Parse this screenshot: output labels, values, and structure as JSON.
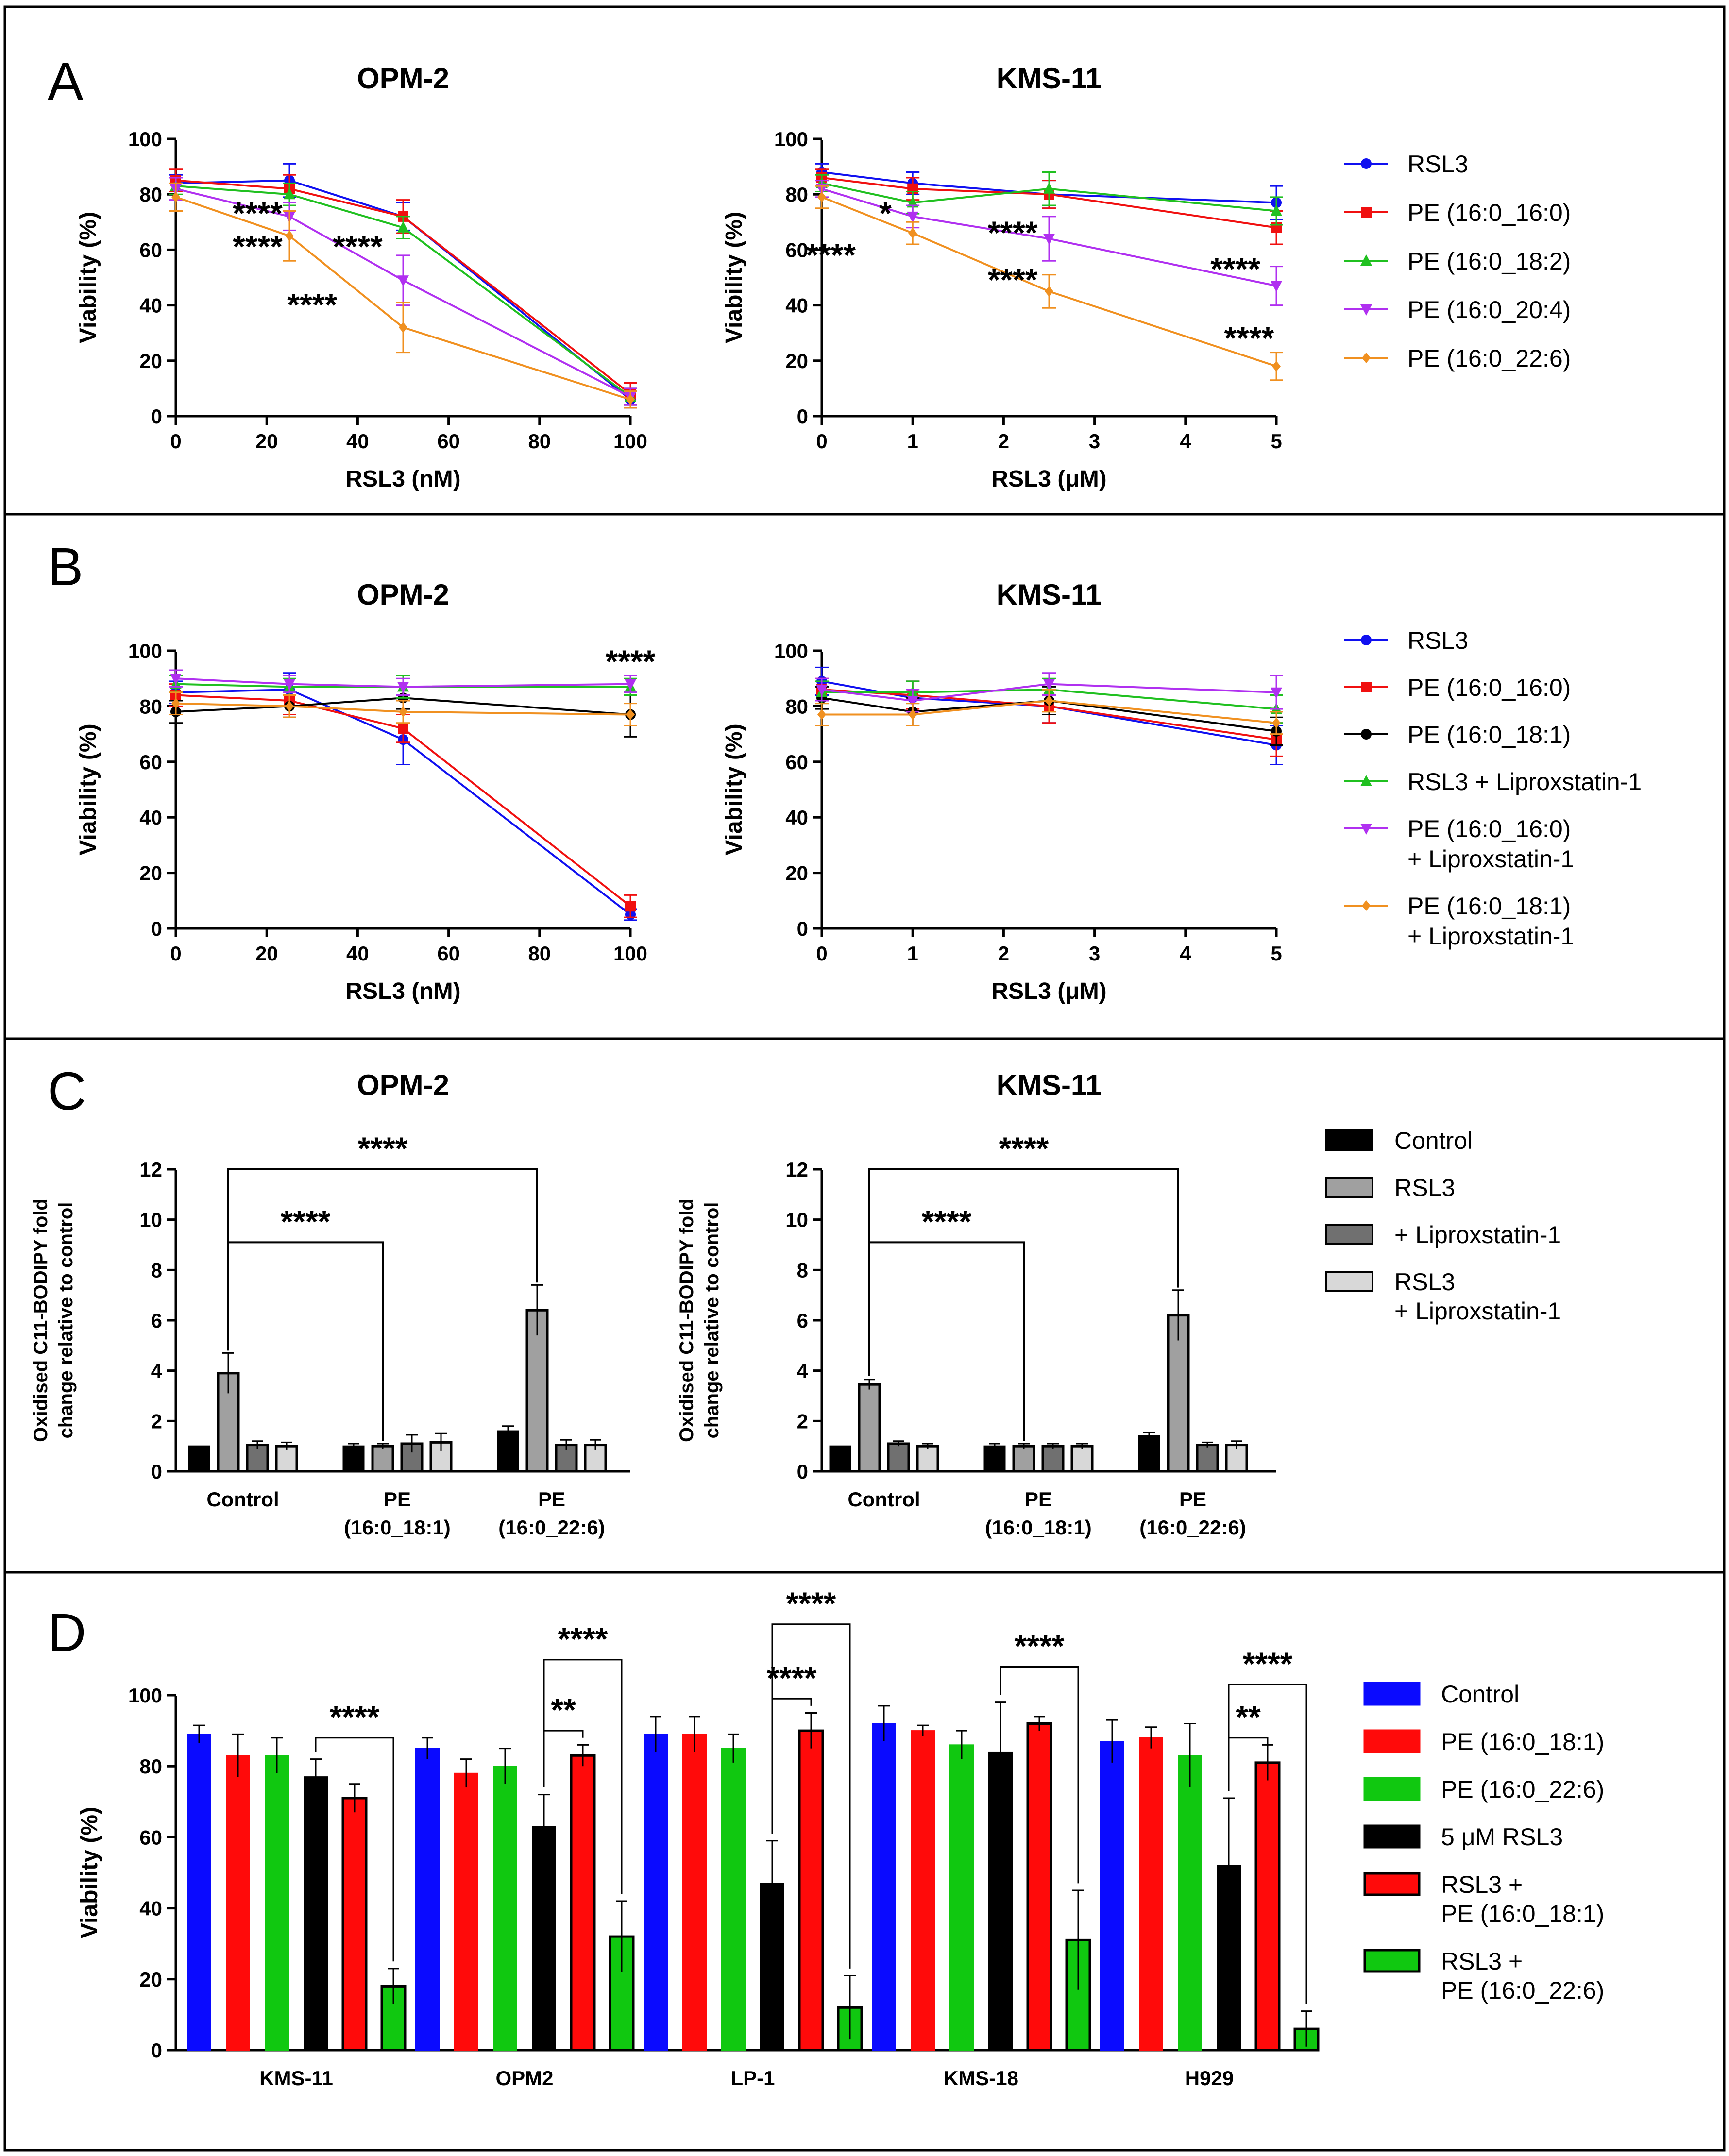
{
  "panels": [
    {
      "letter": "A"
    },
    {
      "letter": "B"
    },
    {
      "letter": "C"
    },
    {
      "letter": "D"
    }
  ],
  "legends": {
    "A": [
      {
        "label": "RSL3",
        "color": "#1010f0",
        "marker": "circle"
      },
      {
        "label": "PE (16:0_16:0)",
        "color": "#f01010",
        "marker": "square"
      },
      {
        "label": "PE (16:0_18:2)",
        "color": "#20c020",
        "marker": "triangle"
      },
      {
        "label": "PE (16:0_20:4)",
        "color": "#b030f0",
        "marker": "triangle-down"
      },
      {
        "label": "PE (16:0_22:6)",
        "color": "#f09020",
        "marker": "diamond"
      }
    ],
    "B": [
      {
        "lines": [
          "RSL3"
        ],
        "color": "#1010f0",
        "marker": "circle"
      },
      {
        "lines": [
          "PE (16:0_16:0)"
        ],
        "color": "#f01010",
        "marker": "square"
      },
      {
        "lines": [
          "PE (16:0_18:1)"
        ],
        "color": "#000000",
        "marker": "circle"
      },
      {
        "lines": [
          "RSL3 + Liproxstatin-1"
        ],
        "color": "#20c020",
        "marker": "triangle"
      },
      {
        "lines": [
          "PE (16:0_16:0)",
          "+ Liproxstatin-1"
        ],
        "color": "#b030f0",
        "marker": "triangle-down"
      },
      {
        "lines": [
          "PE (16:0_18:1)",
          "+ Liproxstatin-1"
        ],
        "color": "#f09020",
        "marker": "diamond"
      }
    ],
    "C": [
      {
        "lines": [
          "Control"
        ],
        "color": "#000000"
      },
      {
        "lines": [
          "RSL3"
        ],
        "color": "#a0a0a0"
      },
      {
        "lines": [
          "+ Liproxstatin-1"
        ],
        "color": "#707070"
      },
      {
        "lines": [
          "RSL3",
          "+ Liproxstatin-1"
        ],
        "color": "#d8d8d8"
      }
    ],
    "D": [
      {
        "lines": [
          "Control"
        ],
        "color": "#0a0aff",
        "border": "#0a0aff"
      },
      {
        "lines": [
          "PE (16:0_18:1)"
        ],
        "color": "#ff0a0a",
        "border": "#ff0a0a"
      },
      {
        "lines": [
          "PE (16:0_22:6)"
        ],
        "color": "#10c810",
        "border": "#10c810"
      },
      {
        "lines": [
          "5 μM RSL3"
        ],
        "color": "#000000",
        "border": "#000000"
      },
      {
        "lines": [
          "RSL3 +",
          "PE (16:0_18:1)"
        ],
        "color": "#ff0a0a",
        "border": "#000000"
      },
      {
        "lines": [
          "RSL3 +",
          "PE (16:0_22:6)"
        ],
        "color": "#10c810",
        "border": "#000000"
      }
    ]
  },
  "chart_data": [
    {
      "id": "A1",
      "panel": "A",
      "type": "line",
      "title": "OPM-2",
      "xlabel": "RSL3 (nM)",
      "ylabel": "Viability (%)",
      "xlim": [
        0,
        100
      ],
      "ylim": [
        0,
        100
      ],
      "xticks": [
        0,
        20,
        40,
        60,
        80,
        100
      ],
      "yticks": [
        0,
        20,
        40,
        60,
        80,
        100
      ],
      "x": [
        0,
        25,
        50,
        100
      ],
      "series": [
        {
          "name": "RSL3",
          "values": [
            84,
            85,
            72,
            6
          ],
          "err": [
            3,
            6,
            5,
            3
          ]
        },
        {
          "name": "PE (16:0_16:0)",
          "values": [
            85,
            82,
            72,
            8
          ],
          "err": [
            4,
            5,
            6,
            4
          ]
        },
        {
          "name": "PE (16:0_18:2)",
          "values": [
            83,
            80,
            68,
            7
          ],
          "err": [
            3,
            4,
            4,
            3
          ]
        },
        {
          "name": "PE (16:0_20:4)",
          "values": [
            82,
            72,
            49,
            7
          ],
          "err": [
            4,
            5,
            9,
            3
          ]
        },
        {
          "name": "PE (16:0_22:6)",
          "values": [
            79,
            65,
            32,
            6
          ],
          "err": [
            5,
            9,
            9,
            3
          ]
        }
      ],
      "annotations": [
        {
          "text": "****",
          "x": 18,
          "y": 73
        },
        {
          "text": "****",
          "x": 18,
          "y": 61
        },
        {
          "text": "****",
          "x": 40,
          "y": 61
        },
        {
          "text": "****",
          "x": 30,
          "y": 40
        }
      ]
    },
    {
      "id": "A2",
      "panel": "A",
      "type": "line",
      "title": "KMS-11",
      "xlabel": "RSL3 (μM)",
      "ylabel": "Viability (%)",
      "xlim": [
        0,
        5
      ],
      "ylim": [
        0,
        100
      ],
      "xticks": [
        0,
        1,
        2,
        3,
        4,
        5
      ],
      "yticks": [
        0,
        20,
        40,
        60,
        80,
        100
      ],
      "x": [
        0,
        1,
        2.5,
        5
      ],
      "series": [
        {
          "name": "RSL3",
          "values": [
            88,
            84,
            80,
            77
          ],
          "err": [
            3,
            4,
            5,
            6
          ]
        },
        {
          "name": "PE (16:0_16:0)",
          "values": [
            86,
            82,
            80,
            68
          ],
          "err": [
            3,
            4,
            5,
            6
          ]
        },
        {
          "name": "PE (16:0_18:2)",
          "values": [
            84,
            77,
            82,
            74
          ],
          "err": [
            3,
            4,
            6,
            5
          ]
        },
        {
          "name": "PE (16:0_20:4)",
          "values": [
            82,
            72,
            64,
            47
          ],
          "err": [
            3,
            4,
            8,
            7
          ]
        },
        {
          "name": "PE (16:0_22:6)",
          "values": [
            79,
            66,
            45,
            18
          ],
          "err": [
            4,
            4,
            6,
            5
          ]
        }
      ],
      "annotations": [
        {
          "text": "*",
          "x": 0.7,
          "y": 73
        },
        {
          "text": "****",
          "x": 2.1,
          "y": 66
        },
        {
          "text": "****",
          "x": 0.1,
          "y": 58
        },
        {
          "text": "****",
          "x": 2.1,
          "y": 49
        },
        {
          "text": "****",
          "x": 4.55,
          "y": 53
        },
        {
          "text": "****",
          "x": 4.7,
          "y": 28
        }
      ]
    },
    {
      "id": "B1",
      "panel": "B",
      "type": "line",
      "title": "OPM-2",
      "xlabel": "RSL3 (nM)",
      "ylabel": "Viability (%)",
      "xlim": [
        0,
        100
      ],
      "ylim": [
        0,
        100
      ],
      "xticks": [
        0,
        20,
        40,
        60,
        80,
        100
      ],
      "yticks": [
        0,
        20,
        40,
        60,
        80,
        100
      ],
      "x": [
        0,
        25,
        50,
        100
      ],
      "series": [
        {
          "name": "RSL3",
          "values": [
            85,
            86,
            68,
            5
          ],
          "err": [
            4,
            6,
            9,
            2
          ]
        },
        {
          "name": "PE (16:0_16:0)",
          "values": [
            84,
            82,
            72,
            8
          ],
          "err": [
            4,
            5,
            5,
            4
          ]
        },
        {
          "name": "PE (16:0_18:1)",
          "values": [
            78,
            80,
            83,
            77
          ],
          "err": [
            4,
            4,
            4,
            8
          ]
        },
        {
          "name": "RSL3 + Liproxstatin-1",
          "values": [
            88,
            87,
            87,
            87
          ],
          "err": [
            3,
            3,
            4,
            3
          ]
        },
        {
          "name": "PE (16:0_16:0) + Liproxstatin-1",
          "values": [
            90,
            88,
            87,
            88
          ],
          "err": [
            3,
            3,
            3,
            3
          ]
        },
        {
          "name": "PE (16:0_18:1) + Liproxstatin-1",
          "values": [
            81,
            80,
            78,
            77
          ],
          "err": [
            4,
            4,
            4,
            4
          ]
        }
      ],
      "annotations": [
        {
          "text": "****",
          "x": 100,
          "y": 96
        }
      ]
    },
    {
      "id": "B2",
      "panel": "B",
      "type": "line",
      "title": "KMS-11",
      "xlabel": "RSL3 (μM)",
      "ylabel": "Viability (%)",
      "xlim": [
        0,
        5
      ],
      "ylim": [
        0,
        100
      ],
      "xticks": [
        0,
        1,
        2,
        3,
        4,
        5
      ],
      "yticks": [
        0,
        20,
        40,
        60,
        80,
        100
      ],
      "x": [
        0,
        1,
        2.5,
        5
      ],
      "series": [
        {
          "name": "RSL3",
          "values": [
            89,
            83,
            80,
            66
          ],
          "err": [
            5,
            6,
            6,
            7
          ]
        },
        {
          "name": "PE (16:0_16:0)",
          "values": [
            86,
            84,
            80,
            68
          ],
          "err": [
            4,
            5,
            6,
            6
          ]
        },
        {
          "name": "PE (16:0_18:1)",
          "values": [
            83,
            78,
            82,
            71
          ],
          "err": [
            4,
            5,
            5,
            5
          ]
        },
        {
          "name": "RSL3 + Liproxstatin-1",
          "values": [
            85,
            85,
            86,
            79
          ],
          "err": [
            4,
            4,
            4,
            5
          ]
        },
        {
          "name": "PE (16:0_16:0) + Liproxstatin-1",
          "values": [
            86,
            82,
            88,
            85
          ],
          "err": [
            4,
            4,
            4,
            6
          ]
        },
        {
          "name": "PE (16:0_18:1) + Liproxstatin-1",
          "values": [
            77,
            77,
            82,
            74
          ],
          "err": [
            4,
            4,
            4,
            4
          ]
        }
      ],
      "annotations": []
    },
    {
      "id": "C1",
      "panel": "C",
      "type": "bar",
      "title": "OPM-2",
      "ylabel": [
        "Oxidised C11-BODIPY fold",
        "change relative to control"
      ],
      "ylim": [
        0,
        12
      ],
      "yticks": [
        0,
        2,
        4,
        6,
        8,
        10,
        12
      ],
      "categories": [
        [
          "Control"
        ],
        [
          "PE",
          "(16:0_18:1)"
        ],
        [
          "PE",
          "(16:0_22:6)"
        ]
      ],
      "series": [
        {
          "name": "Control",
          "values": [
            1.0,
            1.0,
            1.6
          ],
          "err": [
            0,
            0.1,
            0.2
          ]
        },
        {
          "name": "RSL3",
          "values": [
            3.9,
            1.0,
            6.4
          ],
          "err": [
            0.8,
            0.1,
            1.0
          ]
        },
        {
          "name": "+ Liproxstatin-1",
          "values": [
            1.05,
            1.1,
            1.05
          ],
          "err": [
            0.15,
            0.35,
            0.2
          ]
        },
        {
          "name": "RSL3 + Liproxstatin-1",
          "values": [
            1.0,
            1.15,
            1.05
          ],
          "err": [
            0.15,
            0.35,
            0.2
          ]
        }
      ],
      "brackets": [
        {
          "text": "****",
          "from": [
            0,
            1
          ],
          "to": [
            2,
            1
          ],
          "y": 12,
          "start_drop": 3.9,
          "end_drop": 6.4
        },
        {
          "text": "****",
          "from": [
            0,
            1
          ],
          "to": [
            1,
            1
          ],
          "y": 9.1,
          "start_drop": 3.9,
          "end_drop": 1.0
        }
      ]
    },
    {
      "id": "C2",
      "panel": "C",
      "type": "bar",
      "title": "KMS-11",
      "ylabel": [
        "Oxidised C11-BODIPY fold",
        "change relative to control"
      ],
      "ylim": [
        0,
        12
      ],
      "yticks": [
        0,
        2,
        4,
        6,
        8,
        10,
        12
      ],
      "categories": [
        [
          "Control"
        ],
        [
          "PE",
          "(16:0_18:1)"
        ],
        [
          "PE",
          "(16:0_22:6)"
        ]
      ],
      "series": [
        {
          "name": "Control",
          "values": [
            1.0,
            1.0,
            1.4
          ],
          "err": [
            0,
            0.1,
            0.15
          ]
        },
        {
          "name": "RSL3",
          "values": [
            3.45,
            1.0,
            6.2
          ],
          "err": [
            0.2,
            0.1,
            1.0
          ]
        },
        {
          "name": "+ Liproxstatin-1",
          "values": [
            1.1,
            1.0,
            1.05
          ],
          "err": [
            0.1,
            0.1,
            0.1
          ]
        },
        {
          "name": "RSL3 + Liproxstatin-1",
          "values": [
            1.0,
            1.0,
            1.05
          ],
          "err": [
            0.1,
            0.1,
            0.15
          ]
        }
      ],
      "brackets": [
        {
          "text": "****",
          "from": [
            0,
            1
          ],
          "to": [
            2,
            1
          ],
          "y": 12,
          "start_drop": 3.45,
          "end_drop": 6.2
        },
        {
          "text": "****",
          "from": [
            0,
            1
          ],
          "to": [
            1,
            1
          ],
          "y": 9.1,
          "start_drop": 3.45,
          "end_drop": 1.0
        }
      ]
    },
    {
      "id": "D",
      "panel": "D",
      "type": "bar",
      "title": "",
      "ylabel": [
        "Viability (%)"
      ],
      "ylim": [
        0,
        100
      ],
      "yticks": [
        0,
        20,
        40,
        60,
        80,
        100
      ],
      "categories": [
        [
          "KMS-11"
        ],
        [
          "OPM2"
        ],
        [
          "LP-1"
        ],
        [
          "KMS-18"
        ],
        [
          "H929"
        ]
      ],
      "series": [
        {
          "name": "Control",
          "values": [
            89,
            85,
            89,
            92,
            87
          ],
          "err": [
            2.5,
            3,
            5,
            5,
            6
          ]
        },
        {
          "name": "PE (16:0_18:1)",
          "values": [
            83,
            78,
            89,
            90,
            88
          ],
          "err": [
            6,
            4,
            5,
            1.5,
            3
          ]
        },
        {
          "name": "PE (16:0_22:6)",
          "values": [
            83,
            80,
            85,
            86,
            83
          ],
          "err": [
            5,
            5,
            4,
            4,
            9
          ]
        },
        {
          "name": "5 μM RSL3",
          "values": [
            77,
            63,
            47,
            84,
            52
          ],
          "err": [
            5,
            9,
            12,
            14,
            19
          ]
        },
        {
          "name": "RSL3 + PE (16:0_18:1)",
          "values": [
            71,
            83,
            90,
            92,
            81
          ],
          "err": [
            4,
            3,
            5,
            2,
            5
          ]
        },
        {
          "name": "RSL3 + PE (16:0_22:6)",
          "values": [
            18,
            32,
            12,
            31,
            6
          ],
          "err": [
            5,
            10,
            9,
            14,
            5
          ]
        }
      ],
      "brackets": [
        {
          "text": "****",
          "group": 0,
          "from": 3,
          "to": 5,
          "level": 88
        },
        {
          "text": "**",
          "group": 1,
          "from": 3,
          "to": 4,
          "level": 90
        },
        {
          "text": "****",
          "group": 1,
          "from": 3,
          "to": 5,
          "level": 110
        },
        {
          "text": "**",
          "group": 4,
          "from": 3,
          "to": 4,
          "level": 88
        },
        {
          "text": "****",
          "group": 4,
          "from": 3,
          "to": 5,
          "level": 103
        },
        {
          "text": "****",
          "group": 2,
          "from": 3,
          "to": 4,
          "level": 99
        },
        {
          "text": "****",
          "group": 2,
          "from": 3,
          "to": 5,
          "level": 120
        },
        {
          "text": "****",
          "group": 3,
          "from": 3,
          "to": 5,
          "level": 108
        }
      ]
    }
  ]
}
